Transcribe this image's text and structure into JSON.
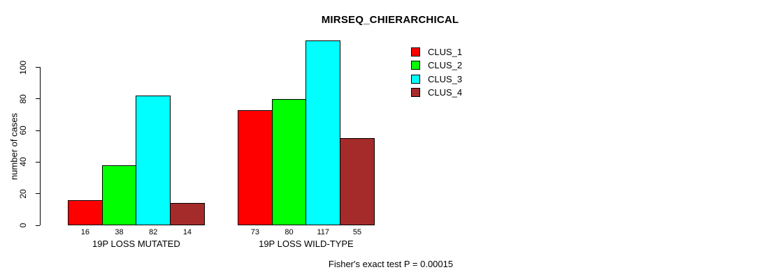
{
  "chart_data": {
    "type": "bar",
    "title": "MIRSEQ_CHIERARCHICAL",
    "ylabel": "number of cases",
    "xlabel": "",
    "categories": [
      "19P LOSS MUTATED",
      "19P LOSS WILD-TYPE"
    ],
    "series": [
      {
        "name": "CLUS_1",
        "color": "#FF0000",
        "values": [
          16,
          73
        ]
      },
      {
        "name": "CLUS_2",
        "color": "#00FF00",
        "values": [
          38,
          80
        ]
      },
      {
        "name": "CLUS_3",
        "color": "#00FFFF",
        "values": [
          82,
          117
        ]
      },
      {
        "name": "CLUS_4",
        "color": "#A52A2A",
        "values": [
          14,
          55
        ]
      }
    ],
    "yticks": [
      0,
      20,
      40,
      60,
      80,
      100
    ],
    "ylim": [
      0,
      117
    ],
    "grid": false,
    "bar_value_labels_shown": true,
    "legend_position": "top-right",
    "annotation": "Fisher's exact test P = 0.00015"
  }
}
